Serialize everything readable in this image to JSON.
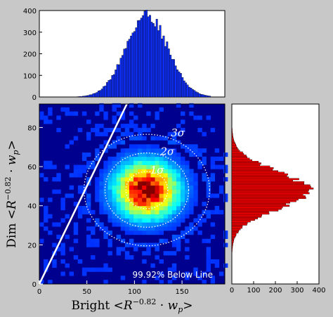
{
  "chart_data": [
    {
      "type": "heatmap",
      "xlabel": "Bright  <R^-0.82 · w_p>",
      "ylabel": "Dim  <R^-0.82 · w_p>",
      "xlim": [
        0,
        195
      ],
      "ylim": [
        0,
        92
      ],
      "xticks": [
        0,
        50,
        100,
        150
      ],
      "yticks": [
        0,
        20,
        40,
        60,
        80
      ],
      "center": [
        113,
        48
      ],
      "sigma": [
        22,
        9.5
      ],
      "sigma_labels": [
        "1σ",
        "2σ",
        "3σ"
      ],
      "line": {
        "x": [
          0,
          92
        ],
        "y": [
          0,
          92
        ]
      },
      "annotation": "99.92% Below Line"
    },
    {
      "type": "bar",
      "orientation": "vertical",
      "xlim": [
        0,
        195
      ],
      "ylim": [
        0,
        400
      ],
      "yticks": [
        0,
        100,
        200,
        300,
        400
      ],
      "color": "#1030ff",
      "mean": 113,
      "std": 22,
      "peak": 385
    },
    {
      "type": "bar",
      "orientation": "horizontal",
      "xlim": [
        0,
        400
      ],
      "ylim": [
        0,
        92
      ],
      "xticks": [
        0,
        100,
        200,
        300,
        400
      ],
      "color": "#ff0000",
      "mean": 48,
      "std": 9.5,
      "peak": 360
    }
  ]
}
